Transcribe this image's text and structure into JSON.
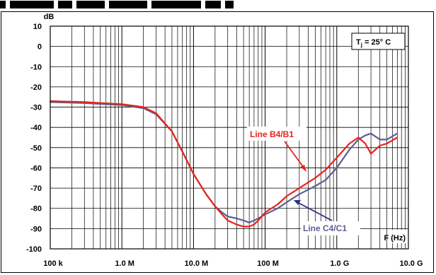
{
  "chart_data": {
    "type": "line",
    "ylabel": "dB",
    "xlabel": "F (Hz)",
    "x_scale": "log",
    "xlim": [
      100000,
      10000000000
    ],
    "ylim": [
      -100,
      10
    ],
    "grid": true,
    "x_tick_labels": [
      "100 k",
      "1.0 M",
      "10.0 M",
      "100 M",
      "1.0 G",
      "10.0 G"
    ],
    "y_tick_labels": [
      "10",
      "0",
      "-10",
      "-20",
      "-30",
      "-40",
      "-50",
      "-60",
      "-70",
      "-80",
      "-90",
      "-100"
    ],
    "annotation": "Tj = 25° C",
    "annotation_main": "T",
    "annotation_sub": "j",
    "annotation_rest": " = 25° C",
    "series": [
      {
        "name": "Line B4/B1",
        "color": "#e8231b",
        "x": [
          100000,
          300000,
          1000000,
          2000000,
          3000000,
          5000000,
          7000000,
          10000000,
          15000000,
          20000000,
          25000000,
          30000000,
          40000000,
          50000000,
          60000000,
          70000000,
          80000000,
          100000000,
          150000000,
          200000000,
          300000000,
          500000000,
          700000000,
          1000000000,
          1500000000,
          2000000000,
          2500000000,
          3000000000,
          4000000000,
          5000000000,
          7000000000
        ],
        "y": [
          -27,
          -27.5,
          -28.5,
          -30,
          -33,
          -42,
          -52,
          -63,
          -73,
          -79,
          -83,
          -86,
          -88,
          -89,
          -89,
          -88,
          -86,
          -82,
          -78,
          -74,
          -70,
          -65,
          -61,
          -55,
          -48,
          -45,
          -48,
          -53,
          -49,
          -48,
          -45
        ]
      },
      {
        "name": "Line C4/C1",
        "color": "#5a5f8f",
        "x": [
          100000,
          300000,
          1000000,
          2000000,
          3000000,
          5000000,
          7000000,
          10000000,
          15000000,
          20000000,
          25000000,
          30000000,
          40000000,
          50000000,
          60000000,
          70000000,
          80000000,
          100000000,
          150000000,
          200000000,
          300000000,
          500000000,
          700000000,
          1000000000,
          1500000000,
          2000000000,
          2500000000,
          3000000000,
          4000000000,
          5000000000,
          7000000000
        ],
        "y": [
          -27.5,
          -28,
          -29,
          -30.5,
          -33.5,
          -42,
          -52,
          -63,
          -73,
          -79,
          -82,
          -84,
          -85,
          -86,
          -87,
          -86,
          -85,
          -83,
          -80,
          -77,
          -73,
          -69,
          -66,
          -60,
          -51,
          -46,
          -44,
          -43,
          -46,
          -46,
          -43
        ]
      }
    ]
  }
}
